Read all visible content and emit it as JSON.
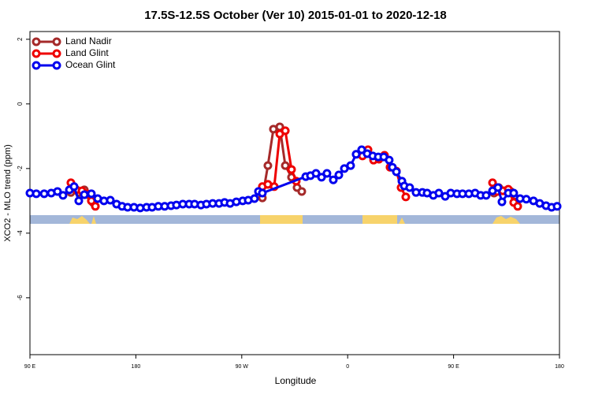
{
  "chart_data": {
    "type": "line",
    "title": "17.5S-12.5S October (Ver 10)   2015-01-01 to 2020-12-18",
    "x_label": "Longitude",
    "y_label": "XCO2 - MLO trend (ppm)",
    "xlim": [
      90,
      540
    ],
    "xticks": [
      {
        "value": 90,
        "label": "90 E"
      },
      {
        "value": 180,
        "label": "180"
      },
      {
        "value": 270,
        "label": "90 W"
      },
      {
        "value": 360,
        "label": "0"
      },
      {
        "value": 450,
        "label": "90 E"
      },
      {
        "value": 540,
        "label": "180"
      }
    ],
    "ylim": [
      -7.76,
      2.24
    ],
    "yticks": [
      2,
      0,
      -2,
      -4,
      -6
    ],
    "legend": "upper left",
    "series": [
      {
        "name": "Land Nadir",
        "color": "#a52a2a",
        "x": [
          124.8,
          131.5,
          136.2,
          139.6,
          143.6,
          null,
          287.5,
          292.2,
          296.9,
          302.3,
          307.0,
          312.3,
          317.0,
          321.0,
          null,
          484.4,
          488.4,
          493.1,
          498.5,
          501.8
        ],
        "values": [
          -2.74,
          -2.74,
          -2.66,
          -2.81,
          -3.05,
          null,
          -2.91,
          -1.91,
          -0.78,
          -0.71,
          -1.91,
          -2.27,
          -2.59,
          -2.71,
          null,
          -2.76,
          -2.59,
          -2.69,
          -2.71,
          -3.03
        ]
      },
      {
        "name": "Land Glint",
        "color": "#ee0000",
        "x": [
          124.8,
          129.5,
          134.2,
          138.2,
          142.2,
          145.6,
          null,
          287.5,
          292.2,
          297.6,
          302.3,
          307.0,
          312.3,
          316.3,
          null,
          372.6,
          377.3,
          382.0,
          386.6,
          391.3,
          396.0,
          401.4,
          405.4,
          409.4,
          null,
          483.1,
          487.1,
          491.8,
          496.5,
          501.1,
          504.5
        ],
        "values": [
          -2.44,
          -2.66,
          -2.69,
          -2.78,
          -3.0,
          -3.17,
          null,
          -2.56,
          -2.49,
          -2.56,
          -0.93,
          -0.83,
          -2.03,
          -2.39,
          null,
          -1.61,
          -1.42,
          -1.74,
          -1.71,
          -1.59,
          -1.96,
          -2.08,
          -2.59,
          -2.88,
          null,
          -2.44,
          -2.71,
          -2.69,
          -2.64,
          -3.05,
          -3.17
        ]
      },
      {
        "name": "Ocean Glint",
        "color": "#0000ee",
        "x": [
          90,
          95.4,
          102.1,
          108.1,
          113.4,
          118.1,
          123.5,
          127.5,
          131.5,
          136.2,
          142.2,
          147.6,
          152.9,
          158.3,
          163.6,
          168.3,
          173.0,
          178.4,
          183.7,
          189.1,
          193.8,
          199.1,
          204.5,
          209.9,
          214.5,
          219.9,
          225.3,
          229.9,
          235.3,
          240.0,
          245.3,
          250.7,
          255.4,
          260.1,
          265.4,
          270.8,
          275.5,
          280.8,
          284.2,
          287.5,
          324.4,
          328.4,
          333.1,
          337.8,
          342.4,
          347.8,
          352.5,
          357.2,
          362.5,
          367.2,
          371.9,
          376.6,
          381.3,
          386.0,
          390.7,
          395.3,
          398.0,
          401.4,
          406.1,
          408.1,
          412.7,
          418.1,
          423.5,
          427.5,
          432.8,
          437.5,
          442.9,
          447.6,
          452.9,
          457.6,
          463.0,
          468.3,
          473.0,
          477.7,
          483.1,
          487.7,
          491.1,
          496.5,
          501.1,
          506.5,
          511.8,
          517.9,
          523.2,
          528.6,
          533.3,
          538.0
        ],
        "values": [
          -2.76,
          -2.78,
          -2.78,
          -2.76,
          -2.71,
          -2.83,
          -2.66,
          -2.56,
          -3.0,
          -2.81,
          -2.78,
          -2.93,
          -3.0,
          -2.98,
          -3.1,
          -3.17,
          -3.2,
          -3.2,
          -3.22,
          -3.2,
          -3.2,
          -3.17,
          -3.17,
          -3.15,
          -3.13,
          -3.1,
          -3.1,
          -3.1,
          -3.13,
          -3.1,
          -3.08,
          -3.08,
          -3.05,
          -3.08,
          -3.03,
          -3.0,
          -2.98,
          -2.93,
          -2.71,
          -2.76,
          -2.25,
          -2.22,
          -2.15,
          -2.27,
          -2.15,
          -2.35,
          -2.2,
          -2.0,
          -1.91,
          -1.56,
          -1.42,
          -1.54,
          -1.61,
          -1.64,
          -1.64,
          -1.74,
          -1.96,
          -2.1,
          -2.39,
          -2.54,
          -2.59,
          -2.74,
          -2.74,
          -2.76,
          -2.83,
          -2.76,
          -2.86,
          -2.76,
          -2.78,
          -2.78,
          -2.78,
          -2.76,
          -2.83,
          -2.83,
          -2.69,
          -2.59,
          -3.03,
          -2.76,
          -2.76,
          -2.93,
          -2.95,
          -3.0,
          -3.08,
          -3.15,
          -3.2,
          -3.17
        ]
      }
    ]
  }
}
